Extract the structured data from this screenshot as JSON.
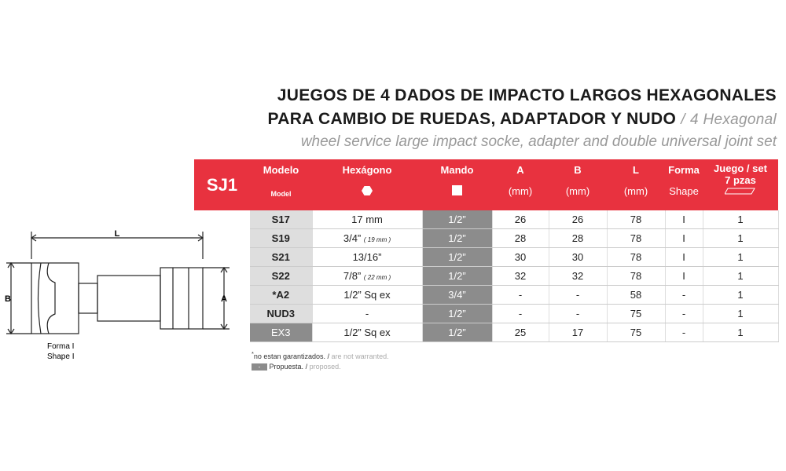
{
  "title": {
    "line1": "JUEGOS DE 4 DADOS DE IMPACTO LARGOS HEXAGONALES",
    "line2": "PARA CAMBIO DE RUEDAS, ADAPTADOR Y NUDO",
    "separator": "/",
    "line2_en": "4 Hexagonal",
    "line3": "wheel service large impact socke, adapter and double universal joint set"
  },
  "table": {
    "set_code": "SJ1",
    "headers": {
      "model": "Modelo",
      "model_en": "Model",
      "hex": "Hexágono",
      "drive": "Mando",
      "a": "A",
      "a_unit": "(mm)",
      "b": "B",
      "b_unit": "(mm)",
      "l": "L",
      "l_unit": "(mm)",
      "shape": "Forma",
      "shape_en": "Shape",
      "set": "Juego / set",
      "set_count": "7 pzas"
    },
    "rows": [
      {
        "model": "S17",
        "hex": "17 mm",
        "drive": "1/2”",
        "a": 26,
        "b": 26,
        "l": 78,
        "shape": "I",
        "set": 1
      },
      {
        "model": "S19",
        "hex": "3/4”",
        "hex_mm": "( 19 mm )",
        "drive": "1/2”",
        "a": 28,
        "b": 28,
        "l": 78,
        "shape": "I",
        "set": 1
      },
      {
        "model": "S21",
        "hex": "13/16”",
        "drive": "1/2”",
        "a": 30,
        "b": 30,
        "l": 78,
        "shape": "I",
        "set": 1
      },
      {
        "model": "S22",
        "hex": "7/8”",
        "hex_mm": "( 22 mm )",
        "drive": "1/2”",
        "a": 32,
        "b": 32,
        "l": 78,
        "shape": "I",
        "set": 1
      },
      {
        "model": "*A2",
        "hex": "1/2” Sq ex",
        "drive": "3/4”",
        "a": "-",
        "b": "-",
        "l": 58,
        "shape": "-",
        "set": 1
      },
      {
        "model": "NUD3",
        "hex": "-",
        "drive": "1/2”",
        "a": "-",
        "b": "-",
        "l": 75,
        "shape": "-",
        "set": 1
      },
      {
        "model": "EX3",
        "hex": "1/2” Sq ex",
        "drive": "1/2”",
        "a": 25,
        "b": 17,
        "l": 75,
        "shape": "-",
        "set": 1,
        "proposed": true
      }
    ]
  },
  "notes": {
    "star": "*",
    "warranty": "no estan garantizados.",
    "warranty_sep": "/",
    "warranty_en": "are not warranted.",
    "proposed_mark": "-",
    "proposed": "Propuesta.",
    "proposed_sep": "/",
    "proposed_en": "proposed."
  },
  "diagram": {
    "l": "L",
    "a": "A",
    "b": "B",
    "caption": "Forma I",
    "caption_en": "Shape I"
  }
}
